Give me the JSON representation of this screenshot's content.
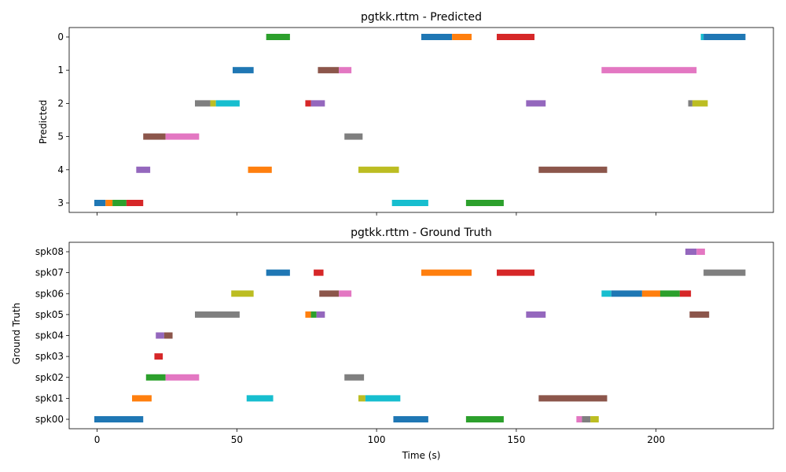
{
  "chart_data": [
    {
      "type": "gantt",
      "title": "pgtkk.rttm - Predicted",
      "ylabel": "Predicted",
      "xlabel": "",
      "xlim": [
        -10,
        242
      ],
      "xticks": [
        0,
        50,
        100,
        150,
        200
      ],
      "xtick_labels_visible": false,
      "rows": [
        "0",
        "1",
        "2",
        "5",
        "4",
        "3"
      ],
      "segments": [
        {
          "row": "0",
          "start": 60.5,
          "end": 69,
          "color": "#2ca02c"
        },
        {
          "row": "0",
          "start": 116,
          "end": 127,
          "color": "#1f77b4"
        },
        {
          "row": "0",
          "start": 127,
          "end": 134,
          "color": "#ff7f0e"
        },
        {
          "row": "0",
          "start": 143,
          "end": 156.5,
          "color": "#d62728"
        },
        {
          "row": "0",
          "start": 216,
          "end": 217,
          "color": "#17becf"
        },
        {
          "row": "0",
          "start": 217,
          "end": 232,
          "color": "#1f77b4"
        },
        {
          "row": "1",
          "start": 48.5,
          "end": 56,
          "color": "#1f77b4"
        },
        {
          "row": "1",
          "start": 79,
          "end": 86.5,
          "color": "#8c564b"
        },
        {
          "row": "1",
          "start": 86.5,
          "end": 91,
          "color": "#e377c2"
        },
        {
          "row": "1",
          "start": 180.5,
          "end": 214.5,
          "color": "#e377c2"
        },
        {
          "row": "2",
          "start": 35,
          "end": 40.5,
          "color": "#7f7f7f"
        },
        {
          "row": "2",
          "start": 40.5,
          "end": 42.5,
          "color": "#bcbd22"
        },
        {
          "row": "2",
          "start": 42.5,
          "end": 51,
          "color": "#17becf"
        },
        {
          "row": "2",
          "start": 74.5,
          "end": 76.5,
          "color": "#d62728"
        },
        {
          "row": "2",
          "start": 76.5,
          "end": 81.5,
          "color": "#9467bd"
        },
        {
          "row": "2",
          "start": 153.5,
          "end": 160.5,
          "color": "#9467bd"
        },
        {
          "row": "2",
          "start": 211.5,
          "end": 213,
          "color": "#7f7f7f"
        },
        {
          "row": "2",
          "start": 213,
          "end": 218.5,
          "color": "#bcbd22"
        },
        {
          "row": "5",
          "start": 16.5,
          "end": 24.5,
          "color": "#8c564b"
        },
        {
          "row": "5",
          "start": 24.5,
          "end": 36.5,
          "color": "#e377c2"
        },
        {
          "row": "5",
          "start": 88.5,
          "end": 95,
          "color": "#7f7f7f"
        },
        {
          "row": "4",
          "start": 14,
          "end": 19,
          "color": "#9467bd"
        },
        {
          "row": "4",
          "start": 54,
          "end": 62.5,
          "color": "#ff7f0e"
        },
        {
          "row": "4",
          "start": 93.5,
          "end": 108,
          "color": "#bcbd22"
        },
        {
          "row": "4",
          "start": 158,
          "end": 182.5,
          "color": "#8c564b"
        },
        {
          "row": "3",
          "start": -1,
          "end": 3,
          "color": "#1f77b4"
        },
        {
          "row": "3",
          "start": 3,
          "end": 5.5,
          "color": "#ff7f0e"
        },
        {
          "row": "3",
          "start": 5.5,
          "end": 10.5,
          "color": "#2ca02c"
        },
        {
          "row": "3",
          "start": 10.5,
          "end": 16.5,
          "color": "#d62728"
        },
        {
          "row": "3",
          "start": 105.5,
          "end": 118.5,
          "color": "#17becf"
        },
        {
          "row": "3",
          "start": 132,
          "end": 145.5,
          "color": "#2ca02c"
        }
      ]
    },
    {
      "type": "gantt",
      "title": "pgtkk.rttm - Ground Truth",
      "ylabel": "Ground Truth",
      "xlabel": "Time (s)",
      "xlim": [
        -10,
        242
      ],
      "xticks": [
        0,
        50,
        100,
        150,
        200
      ],
      "xtick_labels_visible": true,
      "rows": [
        "spk08",
        "spk07",
        "spk06",
        "spk05",
        "spk04",
        "spk03",
        "spk02",
        "spk01",
        "spk00"
      ],
      "segments": [
        {
          "row": "spk08",
          "start": 210.5,
          "end": 214.5,
          "color": "#9467bd"
        },
        {
          "row": "spk08",
          "start": 214.5,
          "end": 217.5,
          "color": "#e377c2"
        },
        {
          "row": "spk07",
          "start": 60.5,
          "end": 69,
          "color": "#1f77b4"
        },
        {
          "row": "spk07",
          "start": 77.5,
          "end": 81,
          "color": "#d62728"
        },
        {
          "row": "spk07",
          "start": 116,
          "end": 134,
          "color": "#ff7f0e"
        },
        {
          "row": "spk07",
          "start": 143,
          "end": 156.5,
          "color": "#d62728"
        },
        {
          "row": "spk07",
          "start": 217,
          "end": 232,
          "color": "#7f7f7f"
        },
        {
          "row": "spk06",
          "start": 48,
          "end": 56,
          "color": "#bcbd22"
        },
        {
          "row": "spk06",
          "start": 79.5,
          "end": 86.5,
          "color": "#8c564b"
        },
        {
          "row": "spk06",
          "start": 86.5,
          "end": 91,
          "color": "#e377c2"
        },
        {
          "row": "spk06",
          "start": 180.5,
          "end": 184,
          "color": "#17becf"
        },
        {
          "row": "spk06",
          "start": 184,
          "end": 195,
          "color": "#1f77b4"
        },
        {
          "row": "spk06",
          "start": 195,
          "end": 201.5,
          "color": "#ff7f0e"
        },
        {
          "row": "spk06",
          "start": 201.5,
          "end": 208.5,
          "color": "#2ca02c"
        },
        {
          "row": "spk06",
          "start": 208.5,
          "end": 212.5,
          "color": "#d62728"
        },
        {
          "row": "spk05",
          "start": 35,
          "end": 51,
          "color": "#7f7f7f"
        },
        {
          "row": "spk05",
          "start": 74.5,
          "end": 76.5,
          "color": "#ff7f0e"
        },
        {
          "row": "spk05",
          "start": 76.5,
          "end": 78.5,
          "color": "#2ca02c"
        },
        {
          "row": "spk05",
          "start": 78.5,
          "end": 81.5,
          "color": "#9467bd"
        },
        {
          "row": "spk05",
          "start": 153.5,
          "end": 160.5,
          "color": "#9467bd"
        },
        {
          "row": "spk05",
          "start": 212,
          "end": 219,
          "color": "#8c564b"
        },
        {
          "row": "spk04",
          "start": 21,
          "end": 24,
          "color": "#9467bd"
        },
        {
          "row": "spk04",
          "start": 24,
          "end": 27,
          "color": "#8c564b"
        },
        {
          "row": "spk03",
          "start": 20.5,
          "end": 23.5,
          "color": "#d62728"
        },
        {
          "row": "spk02",
          "start": 17.5,
          "end": 24.5,
          "color": "#2ca02c"
        },
        {
          "row": "spk02",
          "start": 24.5,
          "end": 36.5,
          "color": "#e377c2"
        },
        {
          "row": "spk02",
          "start": 88.5,
          "end": 95.5,
          "color": "#7f7f7f"
        },
        {
          "row": "spk01",
          "start": 12.5,
          "end": 19.5,
          "color": "#ff7f0e"
        },
        {
          "row": "spk01",
          "start": 53.5,
          "end": 63,
          "color": "#17becf"
        },
        {
          "row": "spk01",
          "start": 93.5,
          "end": 96,
          "color": "#bcbd22"
        },
        {
          "row": "spk01",
          "start": 96,
          "end": 108.5,
          "color": "#17becf"
        },
        {
          "row": "spk01",
          "start": 158,
          "end": 182.5,
          "color": "#8c564b"
        },
        {
          "row": "spk00",
          "start": -1,
          "end": 16.5,
          "color": "#1f77b4"
        },
        {
          "row": "spk00",
          "start": 106,
          "end": 118.5,
          "color": "#1f77b4"
        },
        {
          "row": "spk00",
          "start": 132,
          "end": 145.5,
          "color": "#2ca02c"
        },
        {
          "row": "spk00",
          "start": 171.5,
          "end": 173.5,
          "color": "#e377c2"
        },
        {
          "row": "spk00",
          "start": 173.5,
          "end": 176.5,
          "color": "#7f7f7f"
        },
        {
          "row": "spk00",
          "start": 176.5,
          "end": 179.5,
          "color": "#bcbd22"
        }
      ]
    }
  ]
}
